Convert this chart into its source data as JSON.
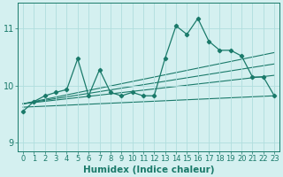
{
  "xlabel": "Humidex (Indice chaleur)",
  "bg_color": "#d4f0f0",
  "grid_color": "#b0dede",
  "line_color": "#1a7a6a",
  "x_data": [
    0,
    1,
    2,
    3,
    4,
    5,
    6,
    7,
    8,
    9,
    10,
    11,
    12,
    13,
    14,
    15,
    16,
    17,
    18,
    19,
    20,
    21,
    22,
    23
  ],
  "y_data": [
    9.55,
    9.72,
    9.82,
    9.88,
    9.93,
    10.47,
    9.82,
    10.28,
    9.88,
    9.82,
    9.88,
    9.82,
    9.82,
    10.48,
    11.05,
    10.9,
    11.18,
    10.78,
    10.62,
    10.62,
    10.52,
    10.15,
    10.15,
    9.82
  ],
  "ylim": [
    8.85,
    11.45
  ],
  "xlim": [
    -0.5,
    23.5
  ],
  "yticks": [
    9,
    10,
    11
  ],
  "xticks": [
    0,
    1,
    2,
    3,
    4,
    5,
    6,
    7,
    8,
    9,
    10,
    11,
    12,
    13,
    14,
    15,
    16,
    17,
    18,
    19,
    20,
    21,
    22,
    23
  ],
  "tick_fontsize": 6,
  "xlabel_fontsize": 7.5,
  "trend_lines": [
    {
      "x0": 0,
      "y0": 9.62,
      "x1": 23,
      "y1": 9.82
    },
    {
      "x0": 0,
      "y0": 9.68,
      "x1": 23,
      "y1": 10.18
    },
    {
      "x0": 0,
      "y0": 9.68,
      "x1": 23,
      "y1": 10.38
    },
    {
      "x0": 0,
      "y0": 9.68,
      "x1": 23,
      "y1": 10.58
    }
  ]
}
